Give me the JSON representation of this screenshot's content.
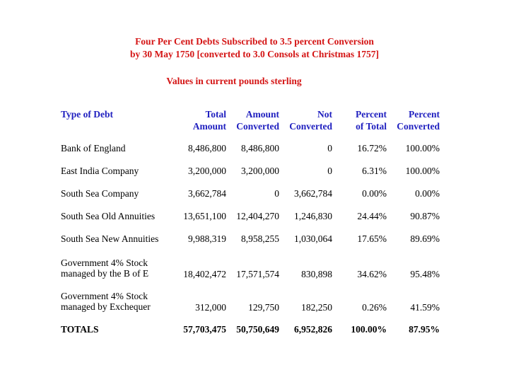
{
  "document": {
    "title_line1": "Four Per Cent Debts Subscribed to 3.5 percent Conversion",
    "title_line2": "by 30 May 1750 [converted to 3.0 Consols at Christmas 1757]",
    "subtitle": "Values in current pounds sterling"
  },
  "table": {
    "headers": {
      "type": "Type of Debt",
      "total_l1": "Total",
      "total_l2": "Amount",
      "converted_l1": "Amount",
      "converted_l2": "Converted",
      "not_l1": "Not",
      "not_l2": "Converted",
      "pct_total_l1": "Percent",
      "pct_total_l2": "of Total",
      "pct_conv_l1": "Percent",
      "pct_conv_l2": "Converted"
    },
    "rows": [
      {
        "name_l1": "Bank of England",
        "name_l2": "",
        "total": "8,486,800",
        "converted": "8,486,800",
        "not_converted": "0",
        "pct_total": "16.72%",
        "pct_converted": "100.00%"
      },
      {
        "name_l1": "East India Company",
        "name_l2": "",
        "total": "3,200,000",
        "converted": "3,200,000",
        "not_converted": "0",
        "pct_total": "6.31%",
        "pct_converted": "100.00%"
      },
      {
        "name_l1": "South Sea Company",
        "name_l2": "",
        "total": "3,662,784",
        "converted": "0",
        "not_converted": "3,662,784",
        "pct_total": "0.00%",
        "pct_converted": "0.00%"
      },
      {
        "name_l1": "South Sea Old Annuities",
        "name_l2": "",
        "total": "13,651,100",
        "converted": "12,404,270",
        "not_converted": "1,246,830",
        "pct_total": "24.44%",
        "pct_converted": "90.87%"
      },
      {
        "name_l1": "South Sea New Annuities",
        "name_l2": "",
        "total": "9,988,319",
        "converted": "8,958,255",
        "not_converted": "1,030,064",
        "pct_total": "17.65%",
        "pct_converted": "89.69%"
      },
      {
        "name_l1": "Government 4% Stock",
        "name_l2": "managed by the B of E",
        "total": "18,402,472",
        "converted": "17,571,574",
        "not_converted": "830,898",
        "pct_total": "34.62%",
        "pct_converted": "95.48%"
      },
      {
        "name_l1": "Government 4% Stock",
        "name_l2": "managed by Exchequer",
        "total": "312,000",
        "converted": "129,750",
        "not_converted": "182,250",
        "pct_total": "0.26%",
        "pct_converted": "41.59%"
      }
    ],
    "totals": {
      "label": "TOTALS",
      "total": "57,703,475",
      "converted": "50,750,649",
      "not_converted": "6,952,826",
      "pct_total": "100.00%",
      "pct_converted": "87.95%"
    }
  }
}
